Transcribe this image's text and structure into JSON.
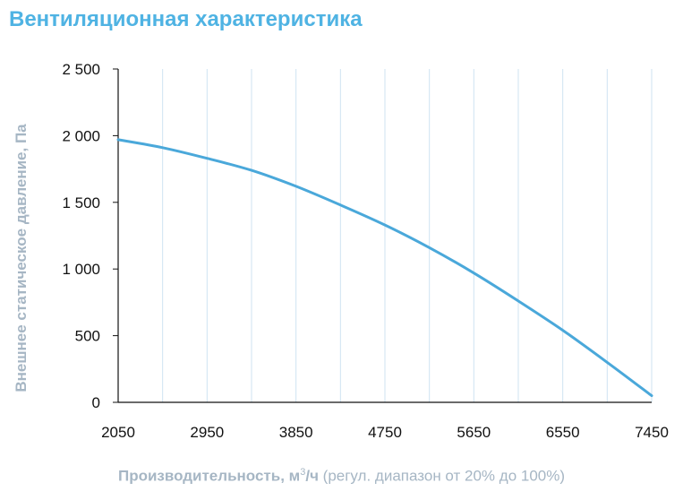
{
  "title": "Вентиляционная характеристика",
  "colors": {
    "title": "#4fb3e3",
    "curve": "#4aa8da",
    "grid": "#cfe3f2",
    "axis": "#111111",
    "label": "#a6b6c4"
  },
  "xlabel_parts": {
    "bold": "Производительность",
    "unit_pre": ", м",
    "unit_sup": "3",
    "unit_post": "/ч",
    "note": " (регул. диапазон от 20% до 100%)"
  },
  "chart_data": {
    "type": "line",
    "title": "Вентиляционная характеристика",
    "xlabel": "Производительность, м3/ч (регул. диапазон от 20% до 100%)",
    "ylabel": "Внешнее статическое давление, Па",
    "xlim": [
      2050,
      7450
    ],
    "ylim": [
      0,
      2500
    ],
    "x_ticks": [
      2050,
      2950,
      3850,
      4750,
      5650,
      6550,
      7450
    ],
    "x_tick_labels": [
      "2050",
      "2950",
      "3850",
      "4750",
      "5650",
      "6550",
      "7450"
    ],
    "y_ticks": [
      0,
      500,
      1000,
      1500,
      2000,
      2500
    ],
    "y_tick_labels": [
      "0",
      "500",
      "1 000",
      "1 500",
      "2 000",
      "2 500"
    ],
    "grid": true,
    "x_grid": [
      2050,
      2500,
      2950,
      3400,
      3850,
      4300,
      4750,
      5200,
      5650,
      6100,
      6550,
      7000,
      7450
    ],
    "series": [
      {
        "x": [
          2050,
          2500,
          2950,
          3400,
          3850,
          4300,
          4750,
          5200,
          5650,
          6100,
          6550,
          7000,
          7450
        ],
        "y": [
          1970,
          1910,
          1830,
          1740,
          1620,
          1480,
          1330,
          1160,
          970,
          760,
          540,
          300,
          50
        ]
      }
    ]
  }
}
